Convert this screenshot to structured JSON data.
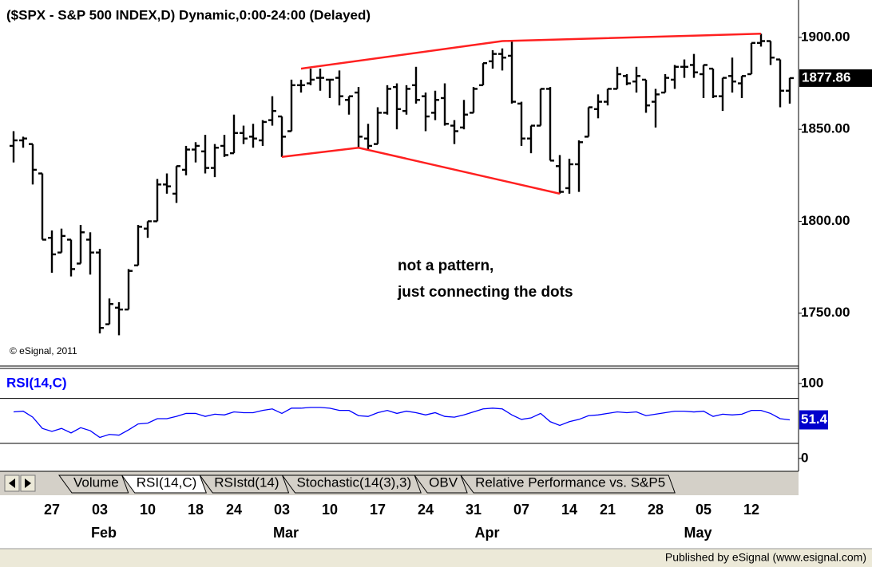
{
  "chart_data": [
    {
      "type": "ohlc",
      "title": "($SPX - S&P 500 INDEX,D) Dynamic,0:00-24:00 (Delayed)",
      "copyright": "© eSignal, 2011",
      "annotation": [
        "not a pattern,",
        "just connecting the dots"
      ],
      "color": "#000000",
      "ylim": [
        1723,
        1916
      ],
      "yticks": [
        {
          "value": 1750,
          "label": "1750.00"
        },
        {
          "value": 1800,
          "label": "1800.00"
        },
        {
          "value": 1850,
          "label": "1850.00"
        },
        {
          "value": 1900,
          "label": "1900.00"
        }
      ],
      "categories": [
        null,
        null,
        null,
        null,
        "27",
        null,
        null,
        null,
        null,
        "03",
        null,
        null,
        null,
        null,
        "10",
        null,
        null,
        null,
        null,
        "18",
        null,
        null,
        null,
        "24",
        null,
        null,
        null,
        null,
        "03",
        null,
        null,
        null,
        null,
        "10",
        null,
        null,
        null,
        null,
        "17",
        null,
        null,
        null,
        null,
        "24",
        null,
        null,
        null,
        null,
        "31",
        null,
        null,
        null,
        null,
        "07",
        null,
        null,
        null,
        null,
        "14",
        null,
        null,
        null,
        "21",
        null,
        null,
        null,
        null,
        "28",
        null,
        null,
        null,
        null,
        "05",
        null,
        null,
        null,
        null,
        "12",
        null,
        null,
        null,
        null
      ],
      "months": [
        null,
        null,
        null,
        null,
        null,
        null,
        null,
        null,
        null,
        "Feb",
        null,
        null,
        null,
        null,
        null,
        null,
        null,
        null,
        null,
        null,
        null,
        null,
        null,
        null,
        null,
        null,
        null,
        null,
        "Mar",
        null,
        null,
        null,
        null,
        null,
        null,
        null,
        null,
        null,
        null,
        null,
        null,
        null,
        null,
        null,
        null,
        null,
        null,
        null,
        null,
        "Apr",
        null,
        null,
        null,
        null,
        null,
        null,
        null,
        null,
        null,
        null,
        null,
        null,
        null,
        null,
        null,
        null,
        null,
        null,
        null,
        null,
        null,
        "May",
        null,
        null,
        null,
        null,
        null,
        null,
        null,
        null,
        null,
        null,
        null
      ],
      "open": [
        1841,
        1844,
        1842,
        1826,
        1791,
        1783,
        1790,
        1777,
        1790,
        1783,
        1744,
        1753,
        1752,
        1776,
        1796,
        1800,
        1820,
        1815,
        1828,
        1839,
        1838,
        1829,
        1841,
        1837,
        1848,
        1846,
        1844,
        1855,
        1857,
        1849,
        1874,
        1875,
        1878,
        1877,
        1878,
        1866,
        1870,
        1845,
        1842,
        1859,
        1873,
        1860,
        1874,
        1868,
        1859,
        1867,
        1852,
        1851,
        1859,
        1874,
        1887,
        1891,
        1890,
        1864,
        1845,
        1852,
        1872,
        1830,
        1818,
        1831,
        1846,
        1861,
        1865,
        1872,
        1879,
        1876,
        1877,
        1865,
        1870,
        1877,
        1884,
        1885,
        1880,
        1883,
        1868,
        1879,
        1875,
        1880,
        1897,
        1898,
        1888,
        1871
      ],
      "high": [
        1849,
        1846,
        1842,
        1826,
        1795,
        1796,
        1790,
        1798,
        1794,
        1785,
        1758,
        1756,
        1774,
        1798,
        1800,
        1823,
        1826,
        1830,
        1841,
        1843,
        1847,
        1842,
        1847,
        1858,
        1852,
        1853,
        1855,
        1868,
        1857,
        1877,
        1877,
        1883,
        1883,
        1877,
        1882,
        1868,
        1873,
        1853,
        1862,
        1874,
        1875,
        1874,
        1884,
        1870,
        1871,
        1875,
        1855,
        1866,
        1873,
        1886,
        1893,
        1894,
        1898,
        1865,
        1852,
        1872,
        1873,
        1836,
        1834,
        1844,
        1862,
        1869,
        1872,
        1884,
        1880,
        1884,
        1877,
        1872,
        1880,
        1885,
        1888,
        1891,
        1885,
        1883,
        1878,
        1889,
        1879,
        1897,
        1902,
        1898,
        1888,
        1878
      ],
      "low": [
        1832,
        1840,
        1820,
        1790,
        1772,
        1783,
        1770,
        1777,
        1771,
        1739,
        1744,
        1738,
        1752,
        1776,
        1791,
        1800,
        1815,
        1810,
        1825,
        1832,
        1826,
        1824,
        1835,
        1837,
        1842,
        1840,
        1841,
        1852,
        1835,
        1849,
        1870,
        1874,
        1871,
        1867,
        1863,
        1858,
        1840,
        1839,
        1842,
        1858,
        1850,
        1858,
        1864,
        1849,
        1855,
        1852,
        1842,
        1850,
        1859,
        1874,
        1883,
        1882,
        1864,
        1841,
        1837,
        1852,
        1833,
        1815,
        1815,
        1816,
        1846,
        1856,
        1863,
        1872,
        1874,
        1870,
        1859,
        1851,
        1870,
        1872,
        1878,
        1878,
        1867,
        1867,
        1860,
        1870,
        1867,
        1880,
        1895,
        1885,
        1862,
        1864
      ],
      "close": [
        1844,
        1845,
        1828,
        1790,
        1782,
        1792,
        1774,
        1794,
        1783,
        1742,
        1755,
        1752,
        1773,
        1797,
        1800,
        1820,
        1819,
        1830,
        1839,
        1841,
        1829,
        1840,
        1836,
        1848,
        1845,
        1845,
        1854,
        1860,
        1846,
        1874,
        1874,
        1877,
        1878,
        1877,
        1868,
        1868,
        1846,
        1841,
        1859,
        1872,
        1861,
        1872,
        1866,
        1857,
        1866,
        1853,
        1849,
        1858,
        1872,
        1886,
        1891,
        1889,
        1865,
        1845,
        1852,
        1872,
        1833,
        1816,
        1831,
        1843,
        1862,
        1865,
        1872,
        1880,
        1875,
        1879,
        1863,
        1869,
        1878,
        1884,
        1884,
        1881,
        1885,
        1868,
        1878,
        1876,
        1879,
        1897,
        1898,
        1889,
        1871,
        1877.86
      ],
      "trendlines": {
        "color": "#ff2020",
        "lines": [
          [
            {
              "index": 30,
              "price": 1883
            },
            {
              "index": 51,
              "price": 1898
            },
            {
              "index": 78,
              "price": 1902
            }
          ],
          [
            {
              "index": 28,
              "price": 1835
            },
            {
              "index": 36,
              "price": 1840
            },
            {
              "index": 57,
              "price": 1815
            }
          ]
        ]
      }
    },
    {
      "type": "line",
      "title": "RSI(14,C)",
      "color": "#0000ff",
      "ylim": [
        -14,
        120
      ],
      "yticks": [
        0,
        100
      ],
      "levels": [
        80,
        20
      ],
      "values": [
        62,
        63,
        55,
        40,
        36,
        40,
        34,
        41,
        37,
        28,
        32,
        31,
        38,
        46,
        47,
        53,
        53,
        56,
        60,
        60,
        56,
        59,
        58,
        62,
        61,
        61,
        64,
        66,
        60,
        67,
        67,
        68,
        68,
        67,
        64,
        64,
        57,
        56,
        61,
        64,
        60,
        63,
        61,
        58,
        61,
        56,
        55,
        58,
        62,
        66,
        67,
        66,
        58,
        52,
        54,
        60,
        49,
        44,
        49,
        52,
        57,
        58,
        60,
        62,
        61,
        62,
        57,
        59,
        61,
        63,
        63,
        62,
        63,
        56,
        59,
        58,
        59,
        64,
        64,
        60,
        53,
        51.41
      ]
    }
  ],
  "tabs": [
    "Volume",
    "RSI(14,C)",
    "RSIstd(14)",
    "Stochastic(14(3),3)",
    "OBV",
    "Relative Performance vs. S&P5"
  ],
  "footer": "Published by eSignal (www.esignal.com)"
}
